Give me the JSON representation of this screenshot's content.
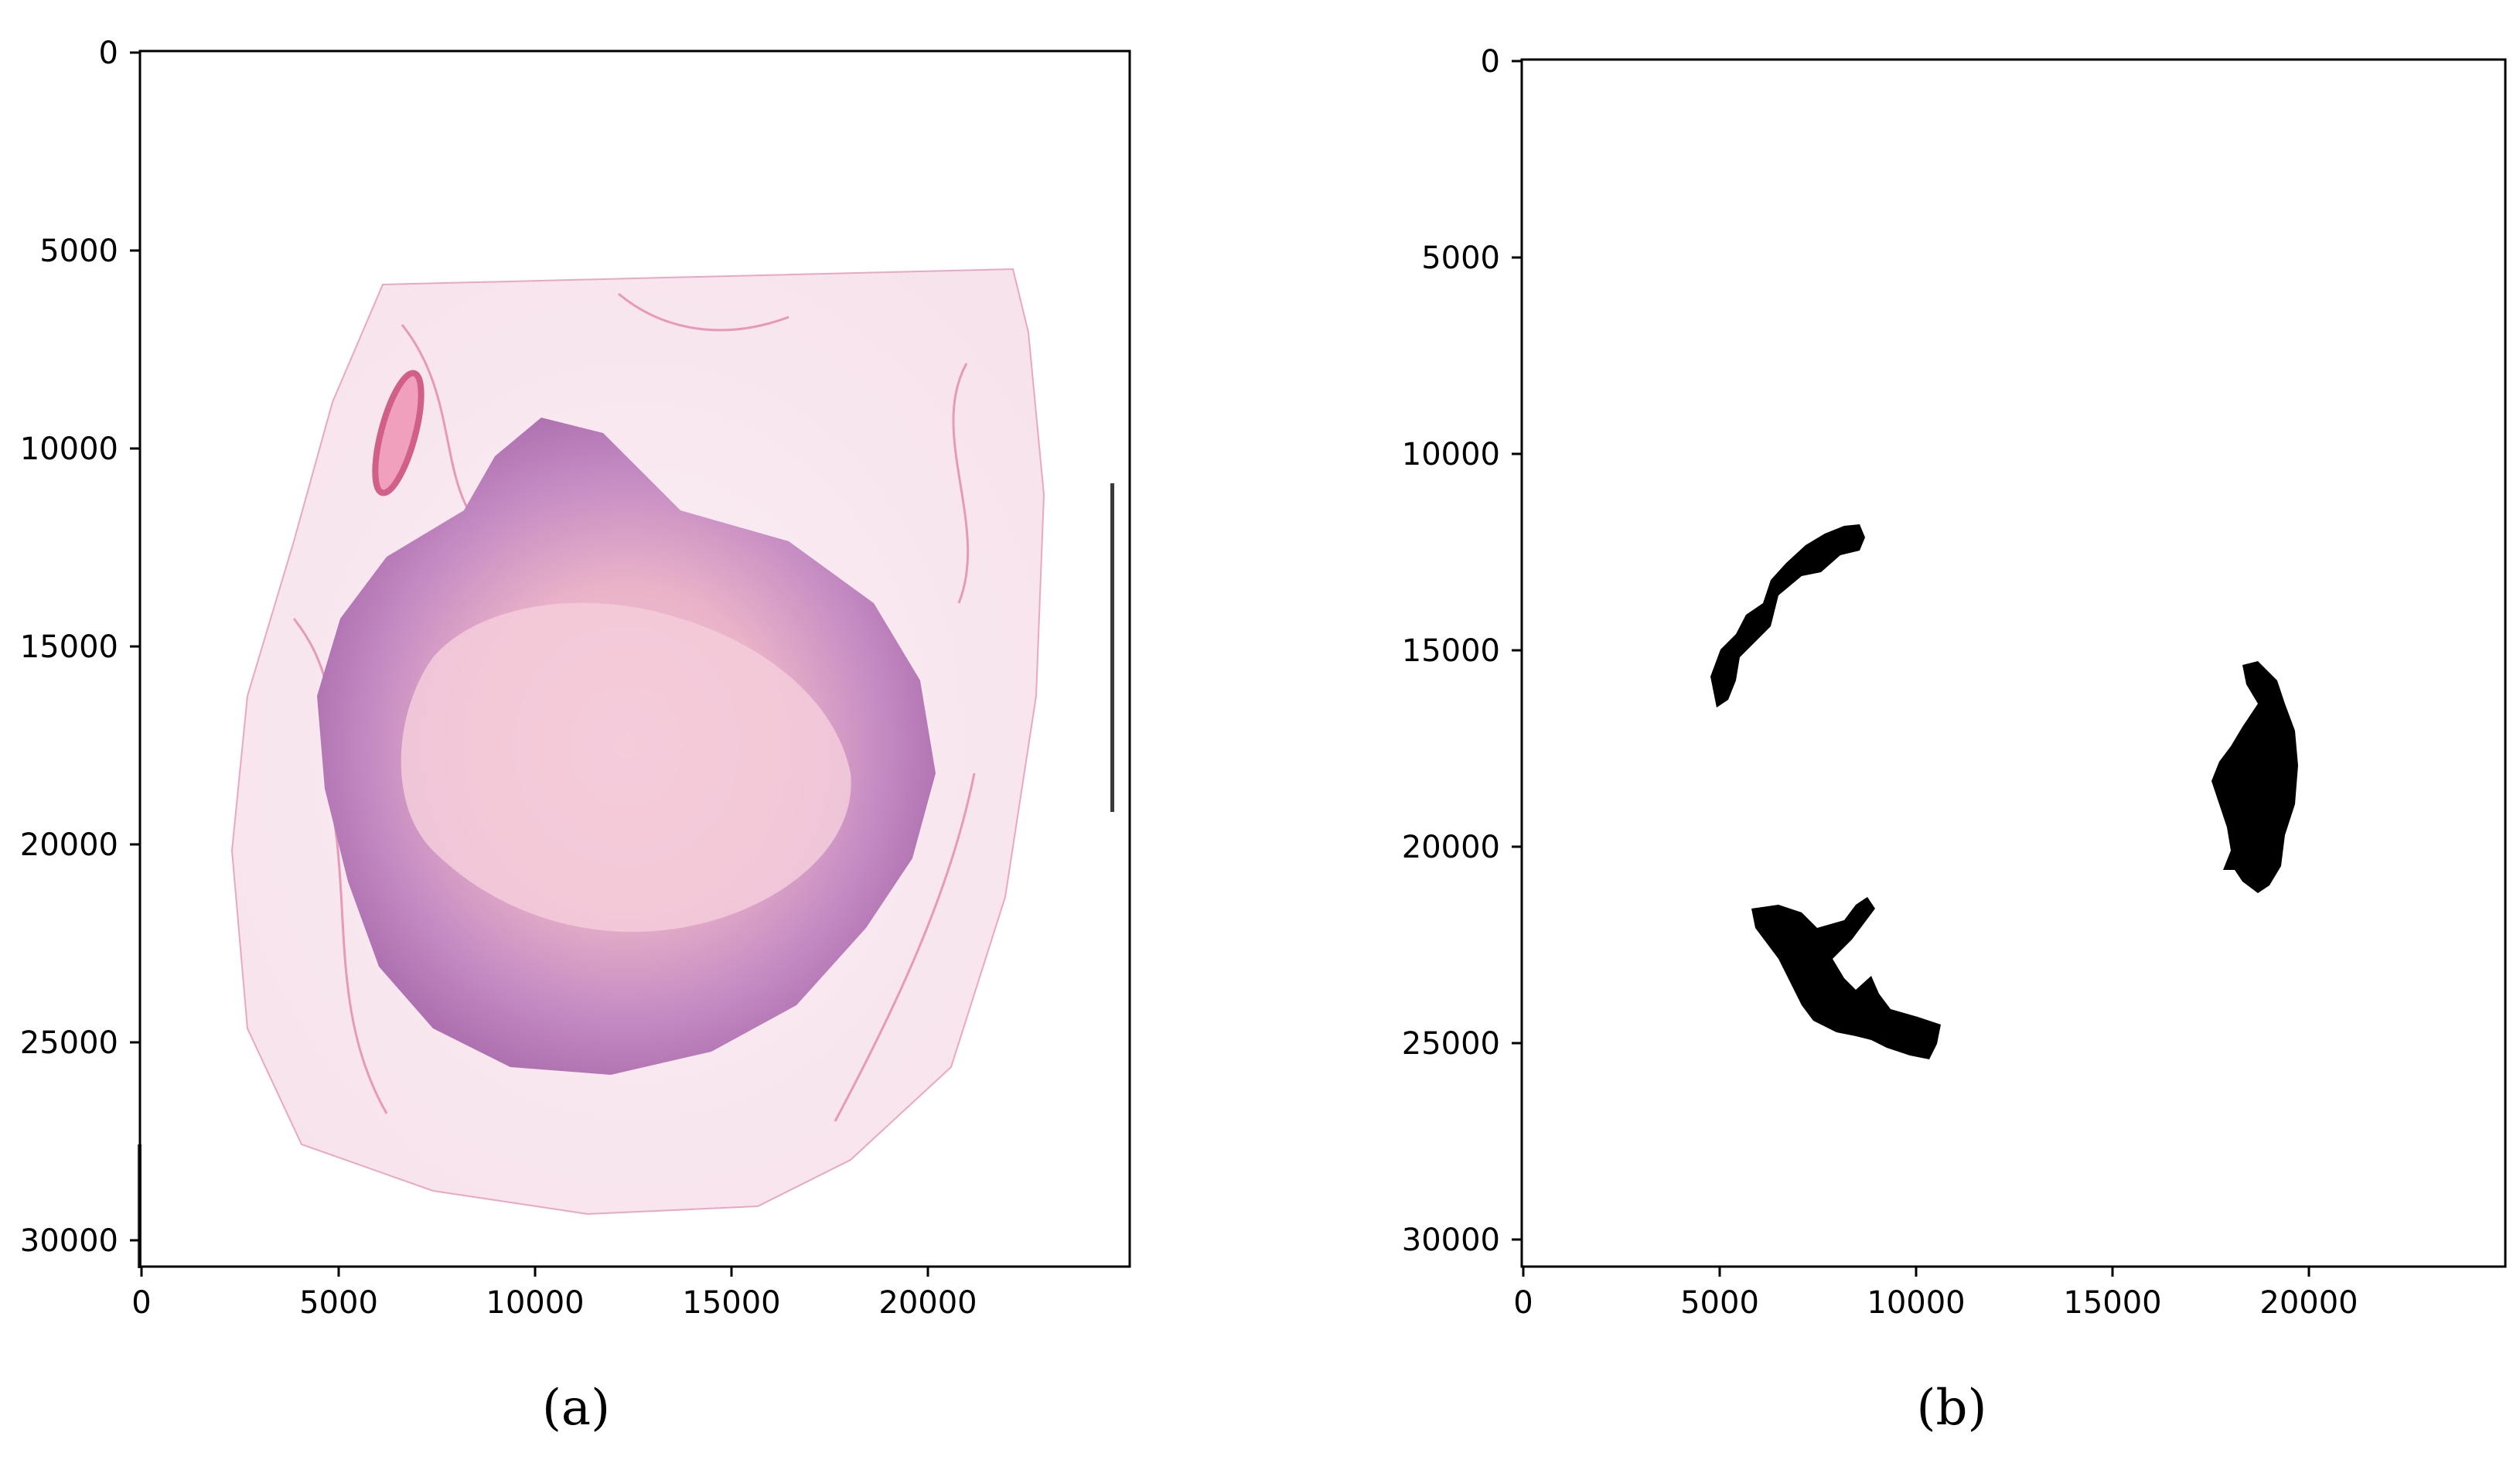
{
  "panels": [
    {
      "id": "a",
      "caption": "(a)",
      "content": "H&E whole-slide tissue image",
      "x_ticks": [
        "0",
        "5000",
        "10000",
        "15000",
        "20000"
      ],
      "y_ticks": [
        "0",
        "5000",
        "10000",
        "15000",
        "20000",
        "25000",
        "30000"
      ]
    },
    {
      "id": "b",
      "caption": "(b)",
      "content": "binary mask with three black regions",
      "x_ticks": [
        "0",
        "5000",
        "10000",
        "15000",
        "20000"
      ],
      "y_ticks": [
        "0",
        "5000",
        "10000",
        "15000",
        "20000",
        "25000",
        "30000"
      ]
    }
  ],
  "colors": {
    "tissue_pink": "#e9b6cf",
    "tumor_purple": "#b779b8",
    "mask_black": "#000000"
  }
}
